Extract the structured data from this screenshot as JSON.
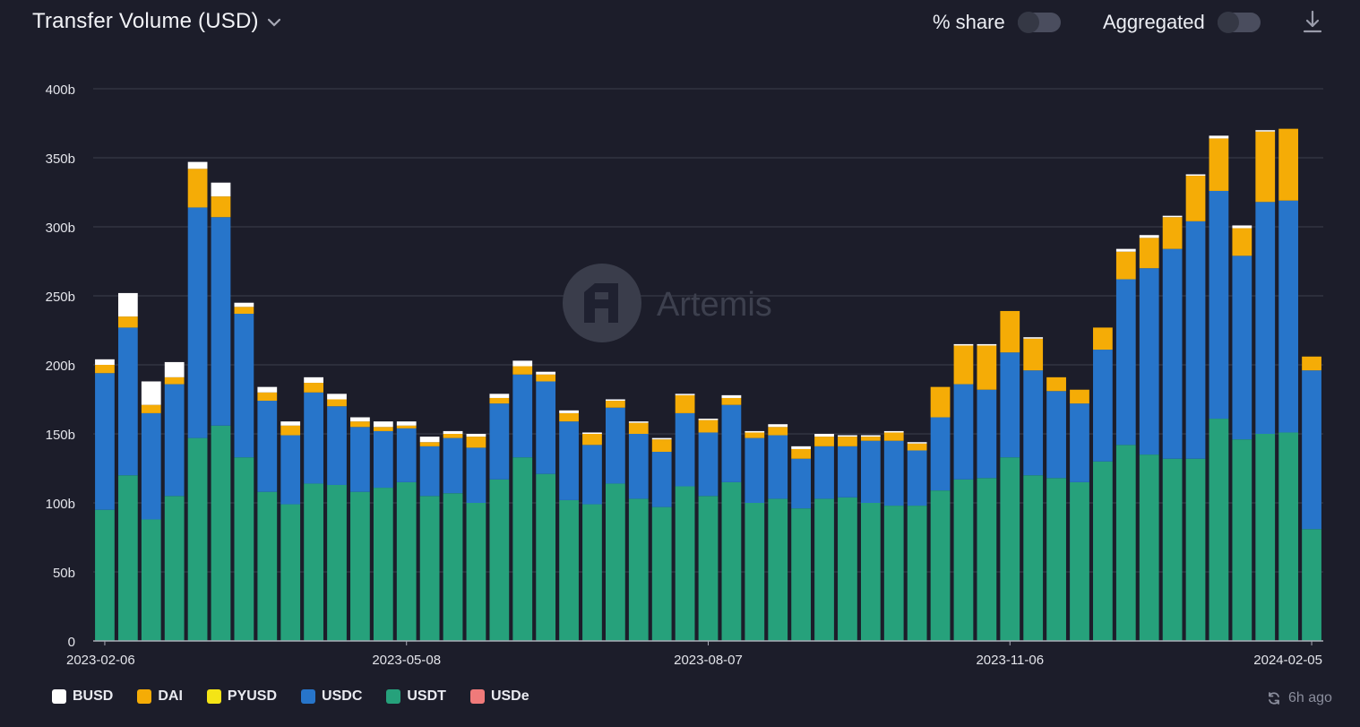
{
  "header": {
    "title": "Transfer Volume (USD)",
    "share_label": "% share",
    "aggregated_label": "Aggregated",
    "share_enabled": false,
    "aggregated_enabled": false
  },
  "watermark": "Artemis",
  "footer": {
    "updated": "6h ago"
  },
  "chart_data": {
    "type": "bar",
    "stacked": true,
    "ylim": [
      0,
      400
    ],
    "y_ticks": [
      0,
      50,
      100,
      150,
      200,
      250,
      300,
      350,
      400
    ],
    "y_tick_labels": [
      "0",
      "50b",
      "100b",
      "150b",
      "200b",
      "250b",
      "300b",
      "350b",
      "400b"
    ],
    "x_tick_labels": [
      {
        "index": 0,
        "label": "2023-02-06"
      },
      {
        "index": 13,
        "label": "2023-05-08"
      },
      {
        "index": 26,
        "label": "2023-08-07"
      },
      {
        "index": 39,
        "label": "2023-11-06"
      },
      {
        "index": 52,
        "label": "2024-02-05"
      }
    ],
    "grid": true,
    "legend_position": "bottom-left",
    "categories": [
      "2023-02-06",
      "2023-02-13",
      "2023-02-20",
      "2023-02-27",
      "2023-03-06",
      "2023-03-13",
      "2023-03-20",
      "2023-03-27",
      "2023-04-03",
      "2023-04-10",
      "2023-04-17",
      "2023-04-24",
      "2023-05-01",
      "2023-05-08",
      "2023-05-15",
      "2023-05-22",
      "2023-05-29",
      "2023-06-05",
      "2023-06-12",
      "2023-06-19",
      "2023-06-26",
      "2023-07-03",
      "2023-07-10",
      "2023-07-17",
      "2023-07-24",
      "2023-07-31",
      "2023-08-07",
      "2023-08-14",
      "2023-08-21",
      "2023-08-28",
      "2023-09-04",
      "2023-09-11",
      "2023-09-18",
      "2023-09-25",
      "2023-10-02",
      "2023-10-09",
      "2023-10-16",
      "2023-10-23",
      "2023-10-30",
      "2023-11-06",
      "2023-11-13",
      "2023-11-20",
      "2023-11-27",
      "2023-12-04",
      "2023-12-11",
      "2023-12-18",
      "2023-12-25",
      "2024-01-01",
      "2024-01-08",
      "2024-01-15",
      "2024-01-22",
      "2024-01-29",
      "2024-02-05"
    ],
    "series": [
      {
        "name": "USDT",
        "color": "#26a17b",
        "values": [
          95,
          120,
          88,
          105,
          147,
          156,
          133,
          108,
          99,
          114,
          113,
          108,
          111,
          115,
          105,
          107,
          100,
          117,
          133,
          121,
          102,
          99,
          114,
          103,
          97,
          112,
          105,
          115,
          100,
          103,
          96,
          103,
          104,
          100,
          98,
          98,
          109,
          117,
          118,
          133,
          120,
          118,
          115,
          130,
          142,
          135,
          132,
          132,
          161,
          146,
          150,
          151,
          81
        ]
      },
      {
        "name": "USDC",
        "color": "#2775ca",
        "values": [
          99,
          107,
          77,
          81,
          167,
          151,
          104,
          66,
          50,
          66,
          57,
          47,
          41,
          39,
          36,
          40,
          40,
          55,
          60,
          67,
          57,
          43,
          55,
          47,
          40,
          53,
          46,
          56,
          47,
          46,
          36,
          38,
          37,
          45,
          47,
          40,
          53,
          69,
          64,
          76,
          76,
          63,
          57,
          81,
          120,
          135,
          152,
          172,
          165,
          133,
          168,
          168,
          115
        ]
      },
      {
        "name": "DAI",
        "color": "#f5ac06",
        "values": [
          6,
          8,
          6,
          5,
          28,
          15,
          5,
          6,
          7,
          7,
          5,
          4,
          3,
          2,
          3,
          3,
          8,
          4,
          6,
          5,
          6,
          8,
          5,
          8,
          9,
          13,
          9,
          5,
          4,
          6,
          7,
          7,
          7,
          3,
          6,
          5,
          22,
          28,
          32,
          30,
          23,
          10,
          10,
          16,
          20,
          22,
          23,
          33,
          38,
          20,
          51,
          52,
          10
        ]
      },
      {
        "name": "PYUSD",
        "color": "#f4e416",
        "values": [
          0,
          0,
          0,
          0,
          0,
          0,
          0,
          0,
          0,
          0,
          0,
          0,
          0,
          0,
          0,
          0,
          0,
          0,
          0,
          0,
          0,
          0,
          0,
          0,
          0,
          0,
          0,
          0,
          0,
          0,
          0,
          0,
          0,
          0,
          0,
          0,
          0,
          0,
          0,
          0,
          0,
          0,
          0,
          0,
          0,
          0,
          0,
          0,
          0,
          0,
          0,
          0,
          0
        ]
      },
      {
        "name": "BUSD",
        "color": "#ffffff",
        "values": [
          4,
          17,
          17,
          11,
          5,
          10,
          3,
          4,
          3,
          4,
          4,
          3,
          4,
          3,
          4,
          2,
          2,
          3,
          4,
          2,
          2,
          1,
          1,
          1,
          1,
          1,
          1,
          2,
          1,
          2,
          2,
          2,
          1,
          1,
          1,
          1,
          0,
          1,
          1,
          0,
          1,
          0,
          0,
          0,
          2,
          2,
          1,
          1,
          2,
          2,
          1,
          0,
          0
        ]
      },
      {
        "name": "USDe",
        "color": "#f07a7a",
        "values": [
          0,
          0,
          0,
          0,
          0,
          0,
          0,
          0,
          0,
          0,
          0,
          0,
          0,
          0,
          0,
          0,
          0,
          0,
          0,
          0,
          0,
          0,
          0,
          0,
          0,
          0,
          0,
          0,
          0,
          0,
          0,
          0,
          0,
          0,
          0,
          0,
          0,
          0,
          0,
          0,
          0,
          0,
          0,
          0,
          0,
          0,
          0,
          0,
          0,
          0,
          0,
          0,
          0
        ]
      }
    ],
    "legend": [
      {
        "name": "BUSD",
        "color": "#ffffff"
      },
      {
        "name": "DAI",
        "color": "#f5ac06"
      },
      {
        "name": "PYUSD",
        "color": "#f4e416"
      },
      {
        "name": "USDC",
        "color": "#2775ca"
      },
      {
        "name": "USDT",
        "color": "#26a17b"
      },
      {
        "name": "USDe",
        "color": "#f07a7a"
      }
    ]
  }
}
